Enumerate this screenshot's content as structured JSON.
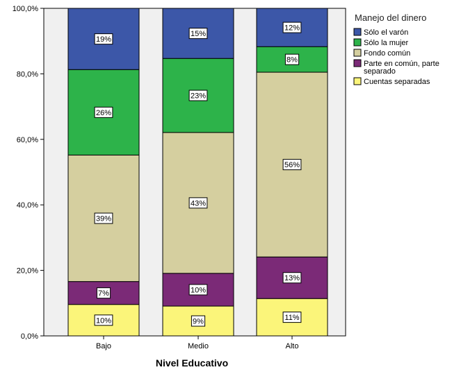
{
  "chart_data": {
    "type": "bar",
    "stacked": true,
    "title": "",
    "xlabel": "Nivel Educativo",
    "ylabel": "",
    "ylim": [
      0,
      100
    ],
    "y_ticks": [
      0,
      20,
      40,
      60,
      80,
      100
    ],
    "y_tick_labels": [
      "0,0%",
      "20,0%",
      "40,0%",
      "60,0%",
      "80,0%",
      "100,0%"
    ],
    "categories": [
      "Bajo",
      "Medio",
      "Alto"
    ],
    "legend_title": "Manejo del dinero",
    "legend_position": "top-right",
    "series": [
      {
        "name": "Cuentas separadas",
        "values": [
          9.6,
          9.1,
          11.4
        ],
        "labels": [
          "10%",
          "9%",
          "11%"
        ],
        "color": "#fbf57a"
      },
      {
        "name": "Parte en común, parte separado",
        "name_lines": [
          "Parte en común, parte",
          "separado"
        ],
        "values": [
          7.0,
          10.0,
          12.7
        ],
        "labels": [
          "7%",
          "10%",
          "13%"
        ],
        "color": "#7b2a77"
      },
      {
        "name": "Fondo común",
        "values": [
          38.6,
          43.0,
          56.4
        ],
        "labels": [
          "39%",
          "43%",
          "56%"
        ],
        "color": "#d5cf9f"
      },
      {
        "name": "Sólo la mujer",
        "values": [
          26.1,
          22.6,
          7.8
        ],
        "labels": [
          "26%",
          "23%",
          "8%"
        ],
        "color": "#2db34a"
      },
      {
        "name": "Sólo el varón",
        "values": [
          18.7,
          15.3,
          11.7
        ],
        "labels": [
          "19%",
          "15%",
          "12%"
        ],
        "color": "#3c57a8"
      }
    ],
    "legend_order": [
      "Sólo el varón",
      "Sólo la mujer",
      "Fondo común",
      "Parte en común, parte separado",
      "Cuentas separadas"
    ],
    "colors": {
      "plot_background": "#f0f0f0",
      "axis": "#000000",
      "bar_border": "#000000"
    }
  }
}
